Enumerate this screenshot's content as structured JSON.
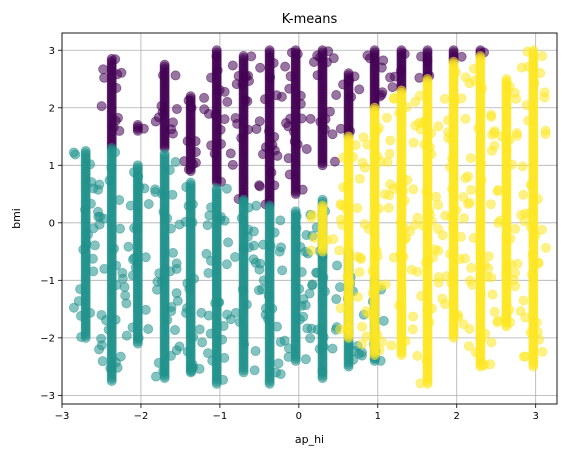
{
  "chart_data": {
    "type": "scatter",
    "title": "K-means",
    "xlabel": "ap_hi",
    "ylabel": "bmi",
    "xlim": [
      -3,
      3.27
    ],
    "ylim": [
      -3.15,
      3.3
    ],
    "xticks": [
      -3,
      -2,
      -1,
      0,
      1,
      2,
      3
    ],
    "yticks": [
      -3,
      -2,
      -1,
      0,
      1,
      2,
      3
    ],
    "grid": true,
    "legend": "none",
    "marker_alpha": 0.55,
    "x_columns": [
      -2.7,
      -2.37,
      -2.04,
      -1.7,
      -1.37,
      -1.04,
      -0.7,
      -0.37,
      -0.04,
      0.3,
      0.63,
      0.96,
      1.3,
      1.63,
      1.96,
      2.3,
      2.63,
      2.97
    ],
    "series": [
      {
        "color": "#440154",
        "columns": [
          {
            "x": -2.37,
            "y_range": [
              1.3,
              2.85
            ]
          },
          {
            "x": -2.04,
            "y_range": [
              1.6,
              1.7
            ]
          },
          {
            "x": -1.7,
            "y_range": [
              1.3,
              2.75
            ]
          },
          {
            "x": -1.37,
            "y_range": [
              0.9,
              2.2
            ]
          },
          {
            "x": -1.04,
            "y_range": [
              0.7,
              3.0
            ]
          },
          {
            "x": -0.7,
            "y_range": [
              0.4,
              2.9
            ]
          },
          {
            "x": -0.37,
            "y_range": [
              0.3,
              3.0
            ]
          },
          {
            "x": -0.04,
            "y_range": [
              0.5,
              3.0
            ]
          },
          {
            "x": 0.3,
            "y_range": [
              1.0,
              3.0
            ]
          },
          {
            "x": 0.63,
            "y_range": [
              1.5,
              2.6
            ]
          },
          {
            "x": 0.96,
            "y_range": [
              2.0,
              3.0
            ]
          },
          {
            "x": 1.3,
            "y_range": [
              2.3,
              3.0
            ]
          },
          {
            "x": 1.63,
            "y_range": [
              2.5,
              3.0
            ]
          },
          {
            "x": 1.96,
            "y_range": [
              2.8,
              3.0
            ]
          },
          {
            "x": 2.3,
            "y_range": [
              2.9,
              3.0
            ]
          }
        ]
      },
      {
        "color": "#21918c",
        "columns": [
          {
            "x": -2.7,
            "y_range": [
              -2.0,
              1.25
            ]
          },
          {
            "x": -2.37,
            "y_range": [
              -2.75,
              1.3
            ]
          },
          {
            "x": -2.04,
            "y_range": [
              -2.1,
              1.0
            ]
          },
          {
            "x": -1.7,
            "y_range": [
              -2.7,
              1.2
            ]
          },
          {
            "x": -1.37,
            "y_range": [
              -2.6,
              0.7
            ]
          },
          {
            "x": -1.04,
            "y_range": [
              -2.8,
              0.6
            ]
          },
          {
            "x": -0.7,
            "y_range": [
              -2.6,
              0.4
            ]
          },
          {
            "x": -0.37,
            "y_range": [
              -2.8,
              0.3
            ]
          },
          {
            "x": -0.04,
            "y_range": [
              -2.4,
              0.2
            ]
          },
          {
            "x": 0.3,
            "y_range": [
              -2.7,
              0.4
            ]
          },
          {
            "x": 0.63,
            "y_range": [
              -2.5,
              -0.5
            ]
          },
          {
            "x": 0.96,
            "y_range": [
              -2.4,
              -1.0
            ]
          }
        ]
      },
      {
        "color": "#fde725",
        "columns": [
          {
            "x": 0.3,
            "y_range": [
              -0.5,
              0.3
            ]
          },
          {
            "x": 0.63,
            "y_range": [
              -2.0,
              1.5
            ]
          },
          {
            "x": 0.96,
            "y_range": [
              -2.3,
              2.0
            ]
          },
          {
            "x": 1.3,
            "y_range": [
              -2.3,
              2.3
            ]
          },
          {
            "x": 1.63,
            "y_range": [
              -2.8,
              2.5
            ]
          },
          {
            "x": 1.96,
            "y_range": [
              -2.0,
              2.8
            ]
          },
          {
            "x": 2.3,
            "y_range": [
              -2.5,
              2.9
            ]
          },
          {
            "x": 2.63,
            "y_range": [
              -1.8,
              2.5
            ]
          },
          {
            "x": 2.97,
            "y_range": [
              -2.5,
              3.0
            ]
          }
        ]
      }
    ]
  }
}
